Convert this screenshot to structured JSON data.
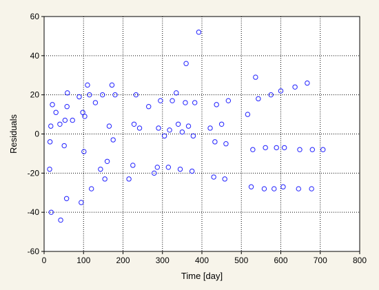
{
  "chart_data": {
    "type": "scatter",
    "title": "",
    "xlabel": "Time [day]",
    "ylabel": "Residuals",
    "xlim": [
      0,
      800
    ],
    "ylim": [
      -60,
      60
    ],
    "x_ticks": [
      0,
      100,
      200,
      300,
      400,
      500,
      600,
      700,
      800
    ],
    "y_ticks": [
      -60,
      -40,
      -20,
      0,
      20,
      40,
      60
    ],
    "grid": true,
    "legend": "none",
    "series": [
      {
        "marker": "open-circle",
        "color": "#1f1fff",
        "points": [
          [
            14,
            -18
          ],
          [
            15,
            -4
          ],
          [
            17,
            4
          ],
          [
            18,
            -40
          ],
          [
            21,
            15
          ],
          [
            30,
            11
          ],
          [
            40,
            5
          ],
          [
            42,
            -44
          ],
          [
            51,
            -6
          ],
          [
            53,
            7
          ],
          [
            57,
            -33
          ],
          [
            58,
            14
          ],
          [
            59,
            21
          ],
          [
            72,
            7
          ],
          [
            89,
            19
          ],
          [
            94,
            -35
          ],
          [
            98,
            11
          ],
          [
            101,
            -9
          ],
          [
            103,
            9
          ],
          [
            110,
            25
          ],
          [
            115,
            20
          ],
          [
            120,
            -28
          ],
          [
            130,
            16
          ],
          [
            143,
            -18
          ],
          [
            148,
            20
          ],
          [
            154,
            -23
          ],
          [
            160,
            -14
          ],
          [
            165,
            4
          ],
          [
            172,
            25
          ],
          [
            175,
            -3
          ],
          [
            180,
            20
          ],
          [
            215,
            -23
          ],
          [
            225,
            -16
          ],
          [
            228,
            5
          ],
          [
            233,
            20
          ],
          [
            242,
            3
          ],
          [
            265,
            14
          ],
          [
            279,
            -20
          ],
          [
            287,
            -17
          ],
          [
            290,
            3
          ],
          [
            295,
            17
          ],
          [
            305,
            -1
          ],
          [
            315,
            -17
          ],
          [
            318,
            2
          ],
          [
            325,
            17
          ],
          [
            335,
            21
          ],
          [
            340,
            5
          ],
          [
            345,
            -18
          ],
          [
            350,
            1
          ],
          [
            358,
            16
          ],
          [
            360,
            36
          ],
          [
            366,
            4
          ],
          [
            375,
            -19
          ],
          [
            378,
            -1
          ],
          [
            382,
            16
          ],
          [
            392,
            52
          ],
          [
            421,
            3
          ],
          [
            430,
            -22
          ],
          [
            433,
            -4
          ],
          [
            437,
            15
          ],
          [
            450,
            5
          ],
          [
            458,
            -23
          ],
          [
            461,
            -5
          ],
          [
            467,
            17
          ],
          [
            516,
            10
          ],
          [
            525,
            -27
          ],
          [
            529,
            -8
          ],
          [
            536,
            29
          ],
          [
            543,
            18
          ],
          [
            558,
            -28
          ],
          [
            561,
            -7
          ],
          [
            575,
            20
          ],
          [
            583,
            -28
          ],
          [
            589,
            -7
          ],
          [
            600,
            22
          ],
          [
            606,
            -27
          ],
          [
            609,
            -7
          ],
          [
            636,
            24
          ],
          [
            645,
            -28
          ],
          [
            648,
            -8
          ],
          [
            667,
            26
          ],
          [
            678,
            -28
          ],
          [
            680,
            -8
          ],
          [
            707,
            -8
          ]
        ]
      }
    ]
  }
}
